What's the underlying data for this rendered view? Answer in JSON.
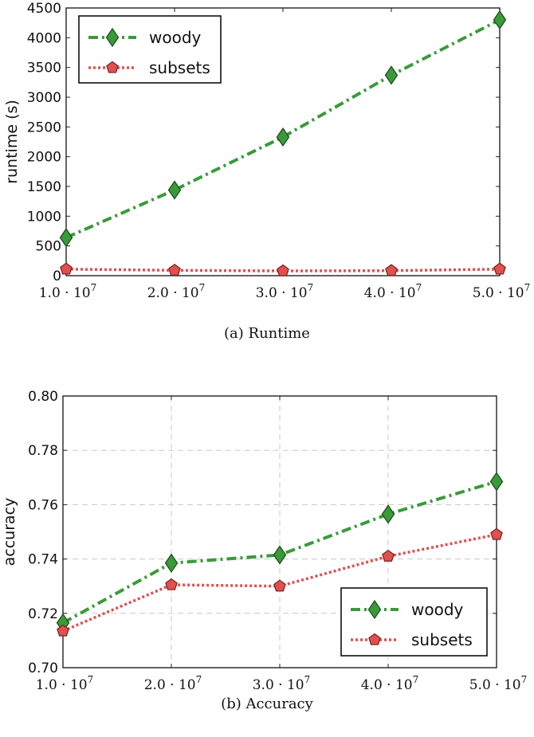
{
  "chart_data": [
    {
      "type": "line",
      "caption": "(a)  Runtime",
      "ylabel": "runtime (s)",
      "xlabel": "",
      "x": [
        10000000,
        20000000,
        30000000,
        40000000,
        50000000
      ],
      "x_tick_labels": [
        "1.0 · 10",
        "2.0 · 10",
        "3.0 · 10",
        "4.0 · 10",
        "5.0 · 10"
      ],
      "x_tick_exponent": "7",
      "xlim": [
        10000000,
        50000000
      ],
      "ylim": [
        0,
        4500
      ],
      "y_ticks": [
        0,
        500,
        1000,
        1500,
        2000,
        2500,
        3000,
        3500,
        4000,
        4500
      ],
      "grid": false,
      "legend_position": "top-left",
      "series": [
        {
          "name": "woody",
          "values": [
            640,
            1440,
            2330,
            3370,
            4300
          ],
          "color": "#3a9a3a",
          "marker": "diamond",
          "line_style": "dash-dot"
        },
        {
          "name": "subsets",
          "values": [
            110,
            90,
            80,
            85,
            110
          ],
          "color": "#e0504f",
          "marker": "pentagon",
          "line_style": "dotted"
        }
      ]
    },
    {
      "type": "line",
      "caption": "(b)  Accuracy",
      "ylabel": "accuracy",
      "xlabel": "",
      "x": [
        10000000,
        20000000,
        30000000,
        40000000,
        50000000
      ],
      "x_tick_labels": [
        "1.0 · 10",
        "2.0 · 10",
        "3.0 · 10",
        "4.0 · 10",
        "5.0 · 10"
      ],
      "x_tick_exponent": "7",
      "xlim": [
        10000000,
        50000000
      ],
      "ylim": [
        0.7,
        0.8
      ],
      "y_ticks": [
        "0.70",
        "0.72",
        "0.74",
        "0.76",
        "0.78",
        "0.80"
      ],
      "grid": true,
      "legend_position": "bottom-right",
      "series": [
        {
          "name": "woody",
          "values": [
            0.7165,
            0.7385,
            0.7415,
            0.7565,
            0.7685
          ],
          "color": "#3a9a3a",
          "marker": "diamond",
          "line_style": "dash-dot"
        },
        {
          "name": "subsets",
          "values": [
            0.7135,
            0.7305,
            0.73,
            0.741,
            0.749
          ],
          "color": "#e0504f",
          "marker": "pentagon",
          "line_style": "dotted"
        }
      ]
    }
  ]
}
